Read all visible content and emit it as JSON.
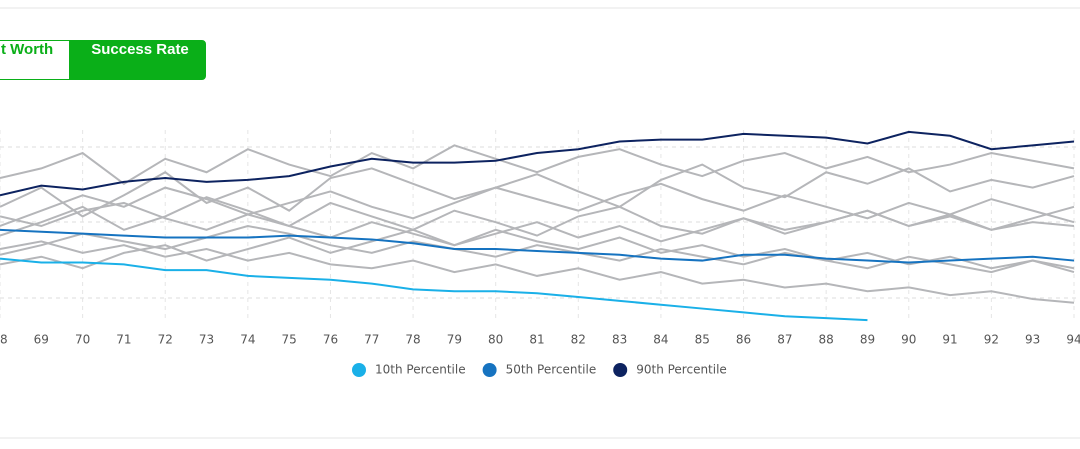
{
  "tabs": [
    "t Worth",
    "Success Rate"
  ],
  "chart_data": {
    "type": "line",
    "x": [
      68,
      69,
      70,
      71,
      72,
      73,
      74,
      75,
      76,
      77,
      78,
      79,
      80,
      81,
      82,
      83,
      84,
      85,
      86,
      87,
      88,
      89,
      90,
      91,
      92,
      93,
      94
    ],
    "xlim": [
      68,
      94
    ],
    "ylim": [
      0,
      100
    ],
    "simulation_color": "#b5b6b9",
    "simulations": [
      [
        60,
        70,
        55,
        66,
        78,
        62,
        70,
        58,
        75,
        80,
        72,
        64,
        70,
        77,
        68,
        60,
        74,
        82,
        70,
        65,
        78,
        72,
        80,
        68,
        74,
        70,
        76
      ],
      [
        45,
        52,
        60,
        48,
        55,
        65,
        58,
        50,
        62,
        55,
        48,
        58,
        52,
        45,
        55,
        60,
        50,
        46,
        54,
        48,
        52,
        58,
        50,
        55,
        48,
        52,
        50
      ],
      [
        38,
        42,
        36,
        40,
        34,
        38,
        32,
        36,
        30,
        28,
        32,
        26,
        30,
        24,
        28,
        22,
        26,
        20,
        22,
        18,
        20,
        16,
        18,
        14,
        16,
        12,
        10
      ],
      [
        75,
        80,
        88,
        72,
        85,
        78,
        90,
        82,
        76,
        88,
        80,
        92,
        85,
        78,
        86,
        90,
        82,
        76,
        84,
        88,
        80,
        86,
        78,
        82,
        88,
        84,
        80
      ],
      [
        30,
        34,
        28,
        36,
        40,
        32,
        38,
        44,
        36,
        42,
        48,
        40,
        46,
        52,
        44,
        50,
        42,
        48,
        54,
        46,
        52,
        58,
        50,
        56,
        48,
        54,
        60
      ],
      [
        55,
        50,
        58,
        62,
        54,
        48,
        56,
        50,
        44,
        52,
        46,
        40,
        48,
        42,
        38,
        44,
        36,
        40,
        34,
        38,
        32,
        36,
        30,
        34,
        28,
        32,
        26
      ],
      [
        50,
        58,
        66,
        60,
        70,
        64,
        56,
        62,
        68,
        60,
        54,
        62,
        70,
        64,
        58,
        66,
        72,
        64,
        58,
        66,
        60,
        54,
        62,
        56,
        64,
        58,
        52
      ],
      [
        35,
        40,
        46,
        42,
        38,
        44,
        50,
        46,
        40,
        36,
        42,
        38,
        34,
        40,
        36,
        32,
        38,
        34,
        30,
        36,
        32,
        28,
        34,
        30,
        26,
        32,
        28
      ]
    ],
    "series": [
      {
        "name": "10th Percentile",
        "color": "#1ab0e8",
        "values": [
          33,
          31,
          31,
          30,
          27,
          27,
          24,
          23,
          22,
          20,
          17,
          16,
          16,
          15,
          13,
          11,
          9,
          7,
          5,
          3,
          2,
          1,
          null,
          null,
          null,
          null,
          null
        ]
      },
      {
        "name": "50th Percentile",
        "color": "#1673c0",
        "values": [
          48,
          47,
          46,
          45,
          44,
          44,
          44,
          45,
          44,
          43,
          41,
          38,
          38,
          37,
          36,
          35,
          33,
          32,
          35,
          35,
          33,
          32,
          31,
          32,
          33,
          34,
          32
        ]
      },
      {
        "name": "90th Percentile",
        "color": "#0d2360",
        "values": [
          66,
          71,
          69,
          73,
          75,
          73,
          74,
          76,
          81,
          85,
          83,
          83,
          84,
          88,
          90,
          94,
          95,
          95,
          98,
          97,
          96,
          93,
          99,
          97,
          90,
          92,
          94
        ]
      }
    ]
  }
}
